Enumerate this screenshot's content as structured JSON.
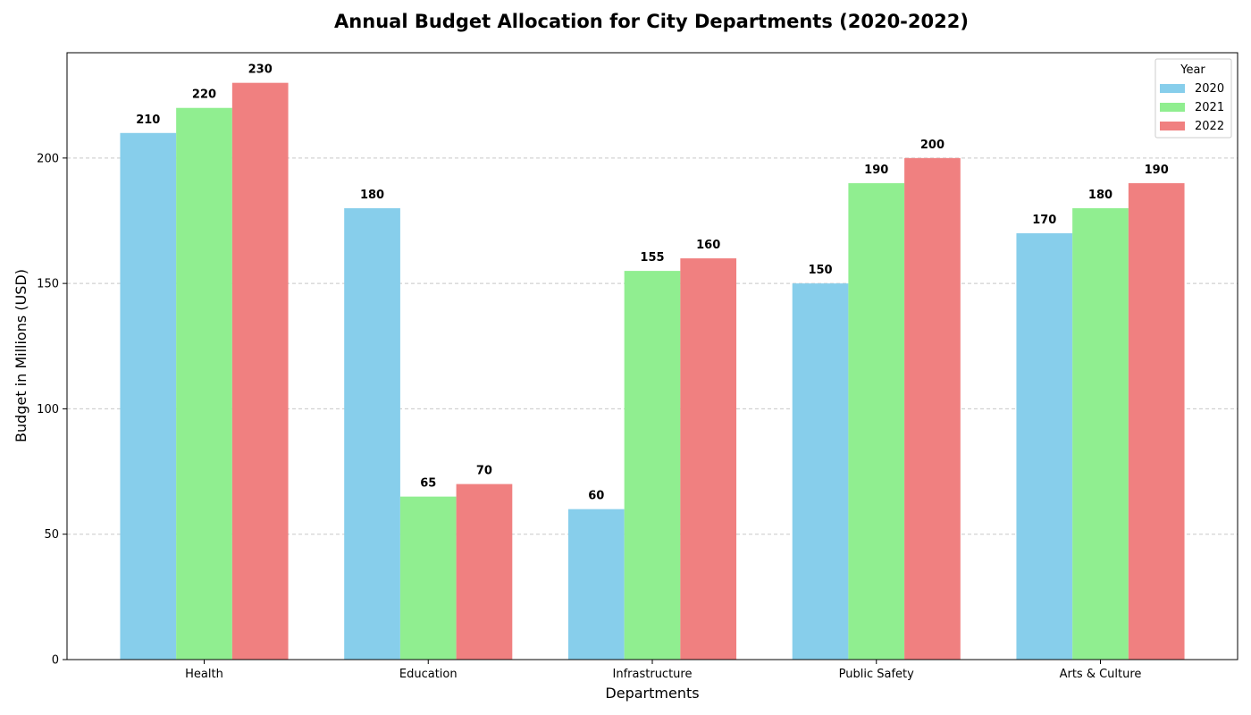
{
  "chart_data": {
    "type": "bar",
    "title": "Annual Budget Allocation for City Departments (2020-2022)",
    "xlabel": "Departments",
    "ylabel": "Budget in Millions (USD)",
    "categories": [
      "Health",
      "Education",
      "Infrastructure",
      "Public Safety",
      "Arts & Culture"
    ],
    "series": [
      {
        "name": "2020",
        "values": [
          210,
          180,
          60,
          150,
          170
        ],
        "color": "#87CEEB"
      },
      {
        "name": "2021",
        "values": [
          220,
          65,
          155,
          190,
          180
        ],
        "color": "#90EE90"
      },
      {
        "name": "2022",
        "values": [
          230,
          70,
          160,
          200,
          190
        ],
        "color": "#F08080"
      }
    ],
    "ylim": [
      0,
      242
    ],
    "yticks": [
      0,
      50,
      100,
      150,
      200
    ],
    "grid": "horizontal dashed",
    "legend": {
      "title": "Year",
      "placement": "top-right"
    }
  }
}
